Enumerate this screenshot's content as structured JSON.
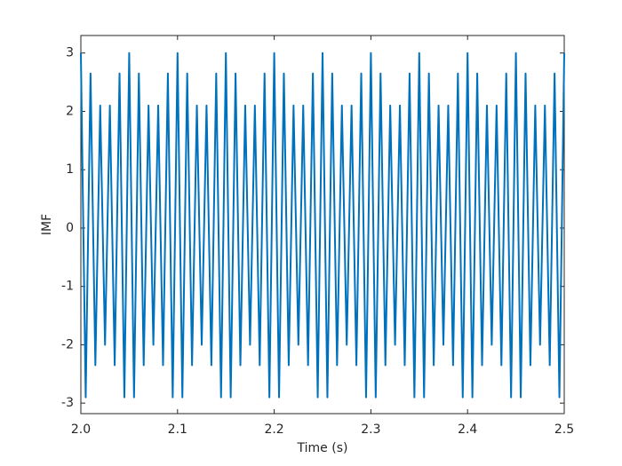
{
  "chart_data": {
    "type": "line",
    "xlabel": "Time (s)",
    "ylabel": "IMF",
    "x": [
      2.0,
      2.005,
      2.01,
      2.015,
      2.02,
      2.025,
      2.03,
      2.035,
      2.04,
      2.045,
      2.05,
      2.055,
      2.06,
      2.065,
      2.07,
      2.075,
      2.08,
      2.085,
      2.09,
      2.095,
      2.1,
      2.105,
      2.11,
      2.115,
      2.12,
      2.125,
      2.13,
      2.135,
      2.14,
      2.145,
      2.15,
      2.155,
      2.16,
      2.165,
      2.17,
      2.175,
      2.18,
      2.185,
      2.19,
      2.195,
      2.2,
      2.205,
      2.21,
      2.215,
      2.22,
      2.225,
      2.23,
      2.235,
      2.24,
      2.245,
      2.25,
      2.255,
      2.26,
      2.265,
      2.27,
      2.275,
      2.28,
      2.285,
      2.29,
      2.295,
      2.3,
      2.305,
      2.31,
      2.315,
      2.32,
      2.325,
      2.33,
      2.335,
      2.34,
      2.345,
      2.35,
      2.355,
      2.36,
      2.365,
      2.37,
      2.375,
      2.38,
      2.385,
      2.39,
      2.395,
      2.4,
      2.405,
      2.41,
      2.415,
      2.42,
      2.425,
      2.43,
      2.435,
      2.44,
      2.445,
      2.45,
      2.455,
      2.46,
      2.465,
      2.47,
      2.475,
      2.48,
      2.485,
      2.49,
      2.495,
      2.5
    ],
    "series": [
      {
        "color": "#0072BD",
        "values": [
          3,
          -2.9,
          2.65,
          -2.35,
          2.1,
          -2.0,
          2.1,
          -2.35,
          2.65,
          -2.9,
          3,
          -2.9,
          2.65,
          -2.35,
          2.1,
          -2.0,
          2.1,
          -2.35,
          2.65,
          -2.9,
          3,
          -2.9,
          2.65,
          -2.35,
          2.1,
          -2.0,
          2.1,
          -2.35,
          2.65,
          -2.9,
          3,
          -2.9,
          2.65,
          -2.35,
          2.1,
          -2.0,
          2.1,
          -2.35,
          2.65,
          -2.9,
          3,
          -2.9,
          2.65,
          -2.35,
          2.1,
          -2.0,
          2.1,
          -2.35,
          2.65,
          -2.9,
          3,
          -2.9,
          2.65,
          -2.35,
          2.1,
          -2.0,
          2.1,
          -2.35,
          2.65,
          -2.9,
          3,
          -2.9,
          2.65,
          -2.35,
          2.1,
          -2.0,
          2.1,
          -2.35,
          2.65,
          -2.9,
          3,
          -2.9,
          2.65,
          -2.35,
          2.1,
          -2.0,
          2.1,
          -2.35,
          2.65,
          -2.9,
          3,
          -2.9,
          2.65,
          -2.35,
          2.1,
          -2.0,
          2.1,
          -2.35,
          2.65,
          -2.9,
          3,
          -2.9,
          2.65,
          -2.35,
          2.1,
          -2.0,
          2.1,
          -2.35,
          2.65,
          -2.9,
          3
        ]
      }
    ],
    "xlim": [
      2.0,
      2.5
    ],
    "xticks": [
      {
        "value": 2.0,
        "label": "2.0"
      },
      2.1,
      2.2,
      2.3,
      2.4,
      {
        "value": 2.5,
        "label": "2.5"
      }
    ],
    "ylim": [
      -3.18,
      3.3
    ],
    "yticks": [
      -3,
      -2,
      -1,
      0,
      1,
      2,
      3
    ]
  }
}
